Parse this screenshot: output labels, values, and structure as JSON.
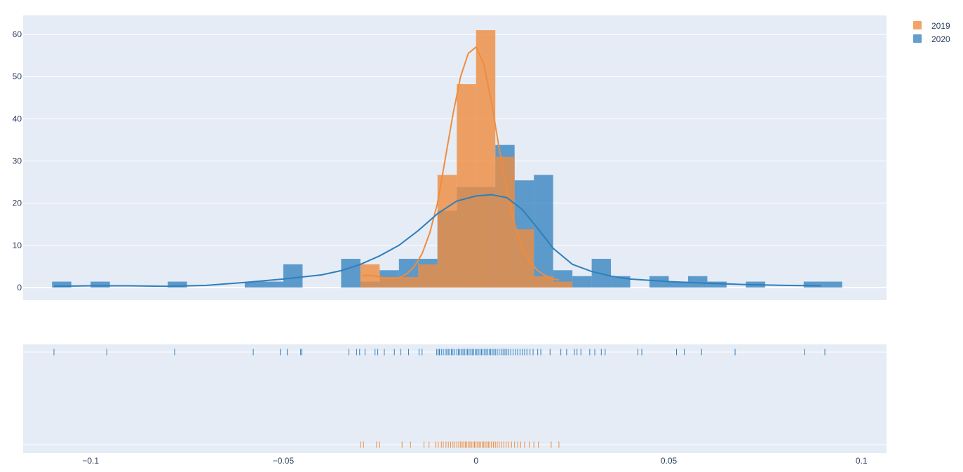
{
  "chart_data": {
    "type": "histogram",
    "legend": [
      {
        "name": "2019",
        "color": "#EF8C3E"
      },
      {
        "name": "2020",
        "color": "#2E7FBC"
      }
    ],
    "legend_position": "top-right",
    "grid": true,
    "background": "#E5ECF6",
    "hist_panel": {
      "ylim": [
        -3,
        64.5
      ],
      "y_ticks": [
        "0",
        "10",
        "20",
        "30",
        "40",
        "50",
        "60"
      ],
      "y_tick_values": [
        0,
        10,
        20,
        30,
        40,
        50,
        60
      ]
    },
    "x_axis": {
      "xlim": [
        -0.1175,
        0.1065
      ],
      "ticks": [
        "−0.1",
        "−0.05",
        "0",
        "0.05",
        "0.1"
      ],
      "tick_values": [
        -0.1,
        -0.05,
        0,
        0.05,
        0.1
      ]
    },
    "bin_width": 0.005,
    "series": [
      {
        "name": "2019",
        "color": "#EF8C3E",
        "opacity": 0.8,
        "bins": [
          {
            "x0": -0.03,
            "x1": -0.025,
            "y": 5.5
          },
          {
            "x0": -0.025,
            "x1": -0.02,
            "y": 2.5
          },
          {
            "x0": -0.02,
            "x1": -0.015,
            "y": 2.5
          },
          {
            "x0": -0.015,
            "x1": -0.01,
            "y": 5.5
          },
          {
            "x0": -0.01,
            "x1": -0.005,
            "y": 26.7
          },
          {
            "x0": -0.005,
            "x1": 0.0,
            "y": 48.2
          },
          {
            "x0": 0.0,
            "x1": 0.005,
            "y": 61.0
          },
          {
            "x0": 0.005,
            "x1": 0.01,
            "y": 31.0
          },
          {
            "x0": 0.01,
            "x1": 0.015,
            "y": 13.8
          },
          {
            "x0": 0.015,
            "x1": 0.02,
            "y": 2.7
          },
          {
            "x0": 0.02,
            "x1": 0.025,
            "y": 1.4
          }
        ],
        "kde": {
          "x": [
            -0.0295,
            -0.028,
            -0.026,
            -0.024,
            -0.022,
            -0.02,
            -0.018,
            -0.016,
            -0.014,
            -0.012,
            -0.01,
            -0.008,
            -0.006,
            -0.004,
            -0.002,
            0.0,
            0.002,
            0.004,
            0.006,
            0.008,
            0.01,
            0.012,
            0.014,
            0.016,
            0.018,
            0.02,
            0.0215
          ],
          "y": [
            2.8,
            2.9,
            2.7,
            2.3,
            2.1,
            2.3,
            3.2,
            5.0,
            8.0,
            13.0,
            20.0,
            30.5,
            41.0,
            50.0,
            55.5,
            57.0,
            53.0,
            44.0,
            33.0,
            23.0,
            15.0,
            9.5,
            6.0,
            4.0,
            2.8,
            2.0,
            1.8
          ]
        },
        "rug": [
          -0.03,
          -0.0292,
          -0.0258,
          -0.025,
          -0.0192,
          -0.017,
          -0.0135,
          -0.0122,
          -0.0105,
          -0.0098,
          -0.009,
          -0.0085,
          -0.0078,
          -0.0072,
          -0.0066,
          -0.006,
          -0.0055,
          -0.005,
          -0.0045,
          -0.004,
          -0.0036,
          -0.0032,
          -0.0028,
          -0.0024,
          -0.002,
          -0.0016,
          -0.0012,
          -0.0008,
          -0.0004,
          0.0,
          0.0004,
          0.0008,
          0.0012,
          0.0016,
          0.002,
          0.0024,
          0.0028,
          0.0032,
          0.0036,
          0.004,
          0.0045,
          0.005,
          0.0055,
          0.006,
          0.0066,
          0.0072,
          0.0078,
          0.0085,
          0.0092,
          0.01,
          0.0108,
          0.0116,
          0.0126,
          0.0138,
          0.015,
          0.0162,
          0.0195,
          0.0215
        ]
      },
      {
        "name": "2020",
        "color": "#2E7FBC",
        "opacity": 0.75,
        "bins": [
          {
            "x0": -0.11,
            "x1": -0.105,
            "y": 1.4
          },
          {
            "x0": -0.1,
            "x1": -0.095,
            "y": 1.4
          },
          {
            "x0": -0.08,
            "x1": -0.075,
            "y": 1.4
          },
          {
            "x0": -0.06,
            "x1": -0.055,
            "y": 1.4
          },
          {
            "x0": -0.055,
            "x1": -0.05,
            "y": 1.4
          },
          {
            "x0": -0.05,
            "x1": -0.045,
            "y": 5.5
          },
          {
            "x0": -0.035,
            "x1": -0.03,
            "y": 6.8
          },
          {
            "x0": -0.03,
            "x1": -0.025,
            "y": 1.4
          },
          {
            "x0": -0.025,
            "x1": -0.02,
            "y": 4.1
          },
          {
            "x0": -0.02,
            "x1": -0.015,
            "y": 6.8
          },
          {
            "x0": -0.015,
            "x1": -0.01,
            "y": 6.8
          },
          {
            "x0": -0.01,
            "x1": -0.005,
            "y": 18.2
          },
          {
            "x0": -0.005,
            "x1": 0.0,
            "y": 23.8
          },
          {
            "x0": 0.0,
            "x1": 0.005,
            "y": 23.8
          },
          {
            "x0": 0.005,
            "x1": 0.01,
            "y": 33.8
          },
          {
            "x0": 0.01,
            "x1": 0.015,
            "y": 25.4
          },
          {
            "x0": 0.015,
            "x1": 0.02,
            "y": 26.7
          },
          {
            "x0": 0.02,
            "x1": 0.025,
            "y": 4.1
          },
          {
            "x0": 0.025,
            "x1": 0.03,
            "y": 2.7
          },
          {
            "x0": 0.03,
            "x1": 0.035,
            "y": 6.8
          },
          {
            "x0": 0.035,
            "x1": 0.04,
            "y": 2.7
          },
          {
            "x0": 0.045,
            "x1": 0.05,
            "y": 2.7
          },
          {
            "x0": 0.05,
            "x1": 0.055,
            "y": 1.4
          },
          {
            "x0": 0.055,
            "x1": 0.06,
            "y": 2.7
          },
          {
            "x0": 0.06,
            "x1": 0.065,
            "y": 1.4
          },
          {
            "x0": 0.07,
            "x1": 0.075,
            "y": 1.4
          },
          {
            "x0": 0.085,
            "x1": 0.09,
            "y": 1.4
          },
          {
            "x0": 0.09,
            "x1": 0.095,
            "y": 1.4
          }
        ],
        "kde": {
          "x": [
            -0.1095,
            -0.1,
            -0.09,
            -0.08,
            -0.07,
            -0.06,
            -0.05,
            -0.04,
            -0.035,
            -0.03,
            -0.025,
            -0.02,
            -0.015,
            -0.01,
            -0.005,
            0.0,
            0.004,
            0.008,
            0.012,
            0.016,
            0.02,
            0.025,
            0.03,
            0.035,
            0.04,
            0.05,
            0.06,
            0.07,
            0.08,
            0.0895
          ],
          "y": [
            0.3,
            0.4,
            0.4,
            0.3,
            0.5,
            1.2,
            2.0,
            3.0,
            4.0,
            5.5,
            7.5,
            10.0,
            13.5,
            17.5,
            20.5,
            21.7,
            22.0,
            21.3,
            18.5,
            14.0,
            9.3,
            5.5,
            3.8,
            2.7,
            2.0,
            1.4,
            1.0,
            0.7,
            0.5,
            0.4
          ]
        },
        "rug": [
          -0.1095,
          -0.0958,
          -0.0782,
          -0.0578,
          -0.0508,
          -0.049,
          -0.0455,
          -0.0452,
          -0.033,
          -0.031,
          -0.0302,
          -0.0288,
          -0.0262,
          -0.0255,
          -0.0238,
          -0.0212,
          -0.0195,
          -0.0175,
          -0.0148,
          -0.014,
          -0.0102,
          -0.0098,
          -0.0095,
          -0.009,
          -0.0085,
          -0.008,
          -0.0076,
          -0.0072,
          -0.0068,
          -0.0064,
          -0.006,
          -0.0055,
          -0.005,
          -0.0046,
          -0.0042,
          -0.0038,
          -0.0034,
          -0.003,
          -0.0026,
          -0.0022,
          -0.0018,
          -0.0014,
          -0.001,
          -0.0006,
          -0.0002,
          0.0002,
          0.0006,
          0.001,
          0.0014,
          0.0018,
          0.0022,
          0.0026,
          0.003,
          0.0034,
          0.0038,
          0.0042,
          0.0046,
          0.005,
          0.0055,
          0.006,
          0.0065,
          0.007,
          0.0075,
          0.008,
          0.0085,
          0.009,
          0.0096,
          0.0102,
          0.0108,
          0.0114,
          0.012,
          0.0126,
          0.0132,
          0.014,
          0.0148,
          0.016,
          0.0168,
          0.0192,
          0.022,
          0.0235,
          0.0255,
          0.0262,
          0.0272,
          0.0295,
          0.0308,
          0.0325,
          0.0335,
          0.042,
          0.043,
          0.052,
          0.054,
          0.0585,
          0.0672,
          0.0853,
          0.0905
        ]
      }
    ]
  }
}
